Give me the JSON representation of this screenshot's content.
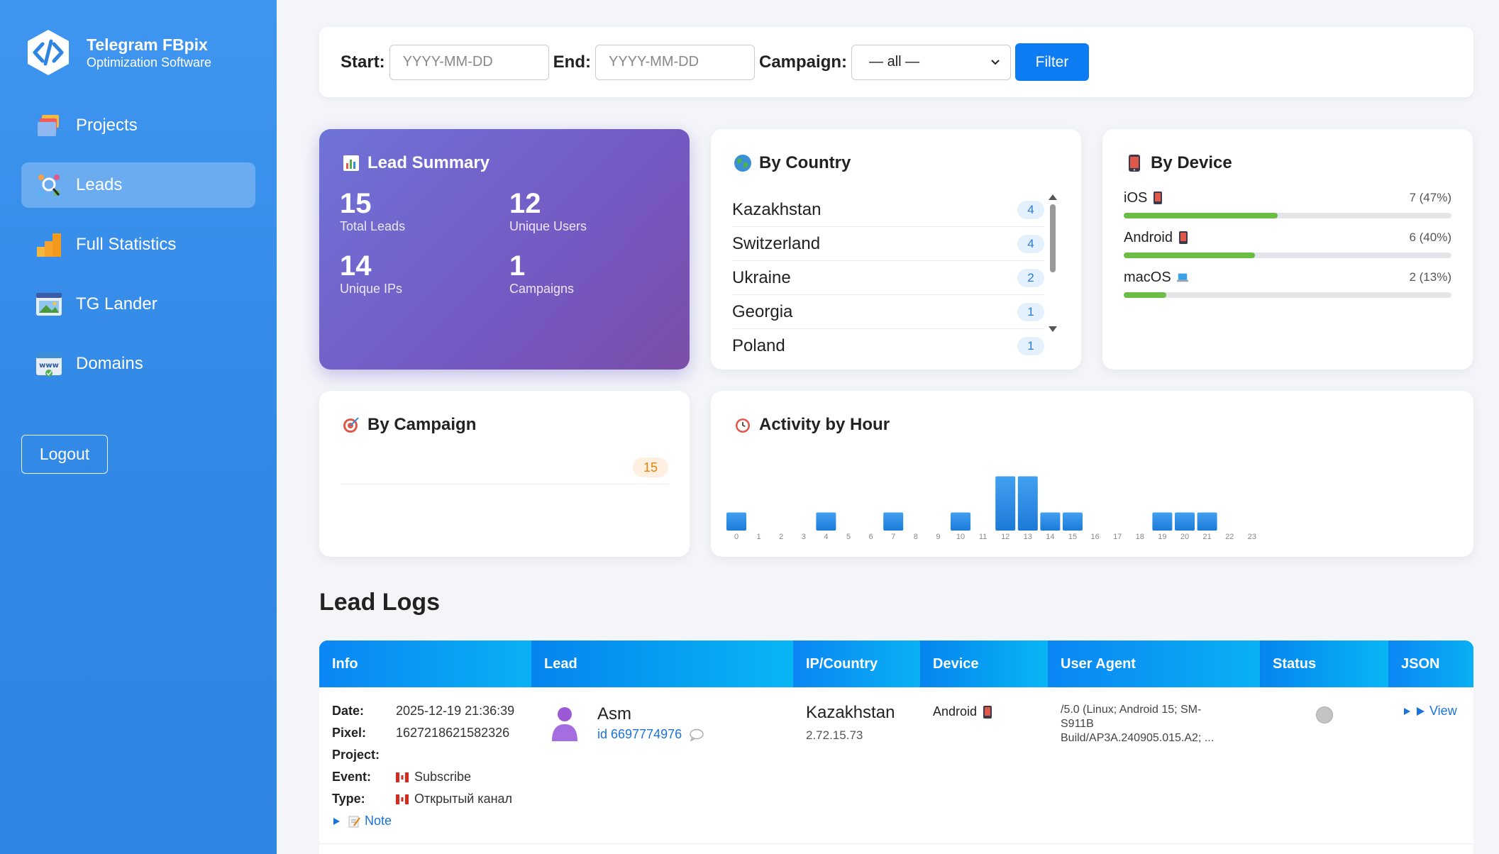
{
  "brand": {
    "title": "Telegram FBpix",
    "subtitle": "Optimization Software"
  },
  "sidebar": {
    "items": [
      {
        "label": "Projects",
        "icon": "folders-icon",
        "active": false
      },
      {
        "label": "Leads",
        "icon": "leads-search-icon",
        "active": true
      },
      {
        "label": "Full Statistics",
        "icon": "bar-chart-icon",
        "active": false
      },
      {
        "label": "TG Lander",
        "icon": "lander-window-icon",
        "active": false
      },
      {
        "label": "Domains",
        "icon": "www-icon",
        "active": false
      }
    ],
    "logout_label": "Logout"
  },
  "filter": {
    "start_label": "Start:",
    "start_placeholder": "YYYY-MM-DD",
    "end_label": "End:",
    "end_placeholder": "YYYY-MM-DD",
    "campaign_label": "Campaign:",
    "campaign_value": "— all —",
    "button_label": "Filter"
  },
  "summary": {
    "title": "Lead Summary",
    "total_leads": "15",
    "total_leads_label": "Total Leads",
    "unique_users": "12",
    "unique_users_label": "Unique Users",
    "unique_ips": "14",
    "unique_ips_label": "Unique IPs",
    "campaigns": "1",
    "campaigns_label": "Campaigns"
  },
  "by_country": {
    "title": "By Country",
    "rows": [
      {
        "name": "Kazakhstan",
        "count": "4"
      },
      {
        "name": "Switzerland",
        "count": "4"
      },
      {
        "name": "Ukraine",
        "count": "2"
      },
      {
        "name": "Georgia",
        "count": "1"
      },
      {
        "name": "Poland",
        "count": "1"
      }
    ]
  },
  "by_device": {
    "title": "By Device",
    "rows": [
      {
        "name": "iOS",
        "value": "7 (47%)",
        "fraction": 0.47
      },
      {
        "name": "Android",
        "value": "6 (40%)",
        "fraction": 0.4
      },
      {
        "name": "macOS",
        "value": "2 (13%)",
        "fraction": 0.13
      }
    ]
  },
  "by_campaign": {
    "title": "By Campaign",
    "rows": [
      {
        "name": "",
        "count": "15"
      }
    ]
  },
  "chart_data": {
    "type": "bar",
    "title": "Activity by Hour",
    "categories": [
      "0",
      "1",
      "2",
      "3",
      "4",
      "5",
      "6",
      "7",
      "8",
      "9",
      "10",
      "11",
      "12",
      "13",
      "14",
      "15",
      "16",
      "17",
      "18",
      "19",
      "20",
      "21",
      "22",
      "23"
    ],
    "values": [
      1,
      0,
      0,
      0,
      1,
      0,
      0,
      1,
      0,
      0,
      1,
      0,
      3,
      3,
      1,
      1,
      0,
      0,
      0,
      1,
      1,
      1,
      0,
      0
    ],
    "ylim": [
      0,
      3
    ],
    "color": "#1e88e5"
  },
  "logs": {
    "title": "Lead Logs",
    "columns": [
      "Info",
      "Lead",
      "IP/Country",
      "Device",
      "User Agent",
      "Status",
      "JSON"
    ],
    "row": {
      "date_label": "Date:",
      "date": "2025-12-19 21:36:39",
      "pixel_label": "Pixel:",
      "pixel": "1627218621582326",
      "project_label": "Project:",
      "project": "",
      "event_label": "Event:",
      "event": "Subscribe",
      "type_label": "Type:",
      "type": "Открытый канал",
      "note_label": "Note",
      "lead_name": "Asm",
      "lead_id": "id 6697774976",
      "country": "Kazakhstan",
      "ip": "2.72.15.73",
      "device": "Android",
      "user_agent_1": "/5.0 (Linux; Android 15; SM-S911B",
      "user_agent_2": "Build/AP3A.240905.015.A2; ...",
      "json_label": "View"
    }
  }
}
